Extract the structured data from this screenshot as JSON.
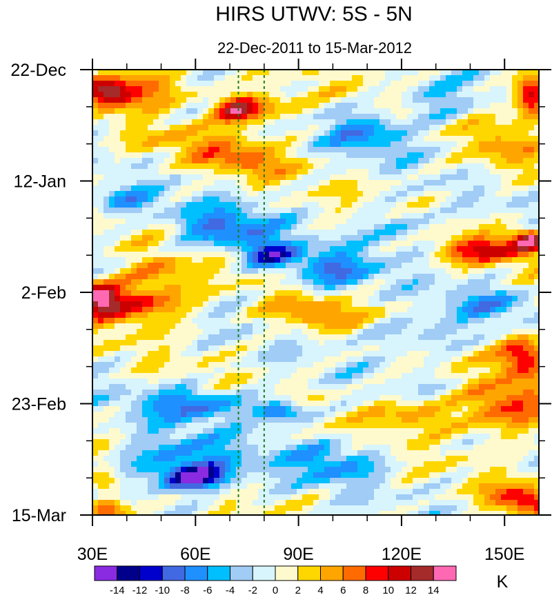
{
  "chart_data": {
    "type": "heatmap",
    "title": "HIRS UTWV: 5S - 5N",
    "subtitle": "22-Dec-2011 to 15-Mar-2012",
    "xlabel": "",
    "ylabel": "",
    "xlim": [
      30,
      160
    ],
    "ylim_days": [
      0,
      84
    ],
    "x_ticks": [
      {
        "value": 30,
        "label": "30E"
      },
      {
        "value": 60,
        "label": "60E"
      },
      {
        "value": 90,
        "label": "90E"
      },
      {
        "value": 120,
        "label": "120E"
      },
      {
        "value": 150,
        "label": "150E"
      }
    ],
    "y_ticks": [
      {
        "value": 0,
        "label": "22-Dec"
      },
      {
        "value": 21,
        "label": "12-Jan"
      },
      {
        "value": 42,
        "label": "2-Feb"
      },
      {
        "value": 63,
        "label": "23-Feb"
      },
      {
        "value": 84,
        "label": "15-Mar"
      }
    ],
    "reference_lines_longitude": [
      72.5,
      80
    ],
    "colorbar": {
      "unit": "K",
      "levels": [
        -14,
        -12,
        -10,
        -8,
        -6,
        -4,
        -2,
        0,
        2,
        4,
        6,
        8,
        10,
        12,
        14
      ],
      "level_labels": [
        "-14",
        "-12",
        "-10",
        "-8",
        "-6",
        "-4",
        "-2",
        "0",
        "2",
        "4",
        "6",
        "8",
        "10",
        "12",
        "14"
      ],
      "colors": [
        "#8a2be2",
        "#00008b",
        "#0000cd",
        "#4169e1",
        "#1e90ff",
        "#00bfff",
        "#a0ccf5",
        "#d8f4fd",
        "#fffacd",
        "#ffd700",
        "#ffa500",
        "#ff6b00",
        "#ff0000",
        "#cd0000",
        "#a52a2a",
        "#ff69b4"
      ]
    },
    "anomaly_features": [
      {
        "lon": 35,
        "day": 4.5,
        "value": 11,
        "rx": 7,
        "ry": 2.5
      },
      {
        "lon": 45,
        "day": 3,
        "value": 7,
        "rx": 14,
        "ry": 3.5
      },
      {
        "lon": 72,
        "day": 7.5,
        "value": 10,
        "rx": 7,
        "ry": 2.5
      },
      {
        "lon": 80,
        "day": 7,
        "value": 6,
        "rx": 12,
        "ry": 3
      },
      {
        "lon": 75,
        "day": 17.5,
        "value": 6,
        "rx": 12,
        "ry": 2.5
      },
      {
        "lon": 60,
        "day": 14,
        "value": 4,
        "rx": 18,
        "ry": 3
      },
      {
        "lon": 158,
        "day": 5,
        "value": 13,
        "rx": 5,
        "ry": 4
      },
      {
        "lon": 150,
        "day": 15,
        "value": 4,
        "rx": 10,
        "ry": 5
      },
      {
        "lon": 145,
        "day": 34,
        "value": 9,
        "rx": 14,
        "ry": 2.5
      },
      {
        "lon": 157,
        "day": 32,
        "value": 13,
        "rx": 5,
        "ry": 2
      },
      {
        "lon": 32,
        "day": 43,
        "value": 12,
        "rx": 6,
        "ry": 3
      },
      {
        "lon": 44,
        "day": 44,
        "value": 10,
        "rx": 14,
        "ry": 4
      },
      {
        "lon": 50,
        "day": 38,
        "value": 5,
        "rx": 10,
        "ry": 3
      },
      {
        "lon": 94,
        "day": 46,
        "value": 6,
        "rx": 12,
        "ry": 3
      },
      {
        "lon": 156,
        "day": 54,
        "value": 10,
        "rx": 7,
        "ry": 4
      },
      {
        "lon": 150,
        "day": 64,
        "value": 9,
        "rx": 12,
        "ry": 5
      },
      {
        "lon": 124,
        "day": 65,
        "value": 6,
        "rx": 12,
        "ry": 3
      },
      {
        "lon": 155,
        "day": 81,
        "value": 10,
        "rx": 10,
        "ry": 2.5
      },
      {
        "lon": 34,
        "day": 83,
        "value": 10,
        "rx": 6,
        "ry": 2
      },
      {
        "lon": 34,
        "day": 78,
        "value": 5,
        "rx": 4,
        "ry": 3
      },
      {
        "lon": 82,
        "day": 35,
        "value": -11,
        "rx": 8,
        "ry": 2.5
      },
      {
        "lon": 68,
        "day": 30,
        "value": -8,
        "rx": 14,
        "ry": 4
      },
      {
        "lon": 100,
        "day": 38,
        "value": -7,
        "rx": 12,
        "ry": 4
      },
      {
        "lon": 60,
        "day": 63,
        "value": -8,
        "rx": 16,
        "ry": 3
      },
      {
        "lon": 85,
        "day": 64.5,
        "value": -10,
        "rx": 7,
        "ry": 2
      },
      {
        "lon": 60,
        "day": 77,
        "value": -11,
        "rx": 10,
        "ry": 2.5
      },
      {
        "lon": 55,
        "day": 74,
        "value": -7,
        "rx": 18,
        "ry": 5
      },
      {
        "lon": 110,
        "day": 12,
        "value": -6,
        "rx": 12,
        "ry": 4
      },
      {
        "lon": 130,
        "day": 6,
        "value": -5,
        "rx": 10,
        "ry": 4
      },
      {
        "lon": 120,
        "day": 30,
        "value": -5,
        "rx": 10,
        "ry": 4
      },
      {
        "lon": 100,
        "day": 74,
        "value": -6,
        "rx": 14,
        "ry": 4
      },
      {
        "lon": 125,
        "day": 50,
        "value": -5,
        "rx": 14,
        "ry": 3
      },
      {
        "lon": 40,
        "day": 25,
        "value": -6,
        "rx": 10,
        "ry": 2.5
      },
      {
        "lon": 145,
        "day": 44,
        "value": -5,
        "rx": 12,
        "ry": 3
      }
    ]
  }
}
